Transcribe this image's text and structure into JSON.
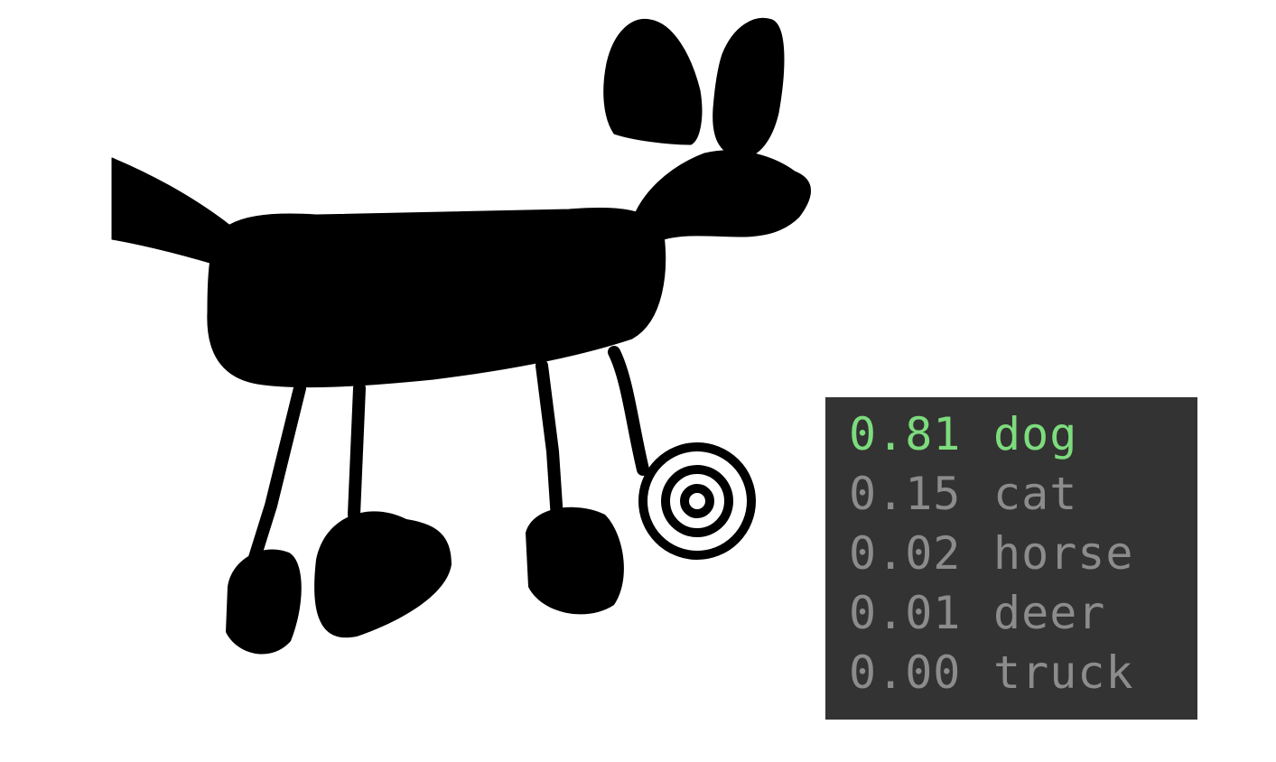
{
  "drawing": {
    "subject_icon": "dog-sketch",
    "ink_color": "#000000",
    "background_color": "#ffffff"
  },
  "predictions": {
    "top_color": "#7ddc7d",
    "other_color": "#8c8c8c",
    "panel_color": "#333333",
    "items": [
      {
        "score": "0.81",
        "label": "dog"
      },
      {
        "score": "0.15",
        "label": "cat"
      },
      {
        "score": "0.02",
        "label": "horse"
      },
      {
        "score": "0.01",
        "label": "deer"
      },
      {
        "score": "0.00",
        "label": "truck"
      }
    ]
  }
}
